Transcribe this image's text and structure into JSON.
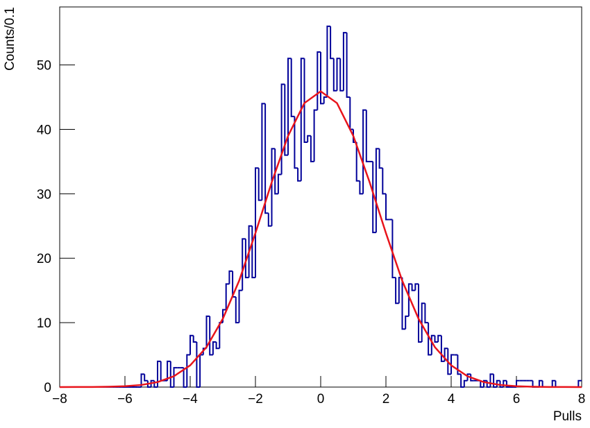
{
  "chart_data": {
    "type": "histogram",
    "x_label": "Pulls",
    "y_label": "Counts/0.1",
    "xlim": [
      -8,
      8
    ],
    "ylim": [
      0,
      59
    ],
    "xticks": [
      {
        "value": -8,
        "label": "−8"
      },
      {
        "value": -6,
        "label": "−6"
      },
      {
        "value": -4,
        "label": "−4"
      },
      {
        "value": -2,
        "label": "−2"
      },
      0,
      2,
      4,
      6,
      8
    ],
    "yticks": [
      0,
      10,
      20,
      30,
      40,
      50
    ],
    "bins": [
      -8,
      -7.9,
      -7.8,
      -7.7,
      -7.6,
      -7.5,
      -7.4,
      -7.3,
      -7.2,
      -7.1,
      -7,
      -6.9,
      -6.8,
      -6.7,
      -6.6,
      -6.5,
      -6.4,
      -6.3,
      -6.2,
      -6.1,
      -6,
      -5.9,
      -5.8,
      -5.7,
      -5.6,
      -5.5,
      -5.4,
      -5.3,
      -5.2,
      -5.1,
      -5,
      -4.9,
      -4.8,
      -4.7,
      -4.6,
      -4.5,
      -4.4,
      -4.3,
      -4.2,
      -4.1,
      -4,
      -3.9,
      -3.8,
      -3.7,
      -3.6,
      -3.5,
      -3.4,
      -3.3,
      -3.2,
      -3.1,
      -3,
      -2.9,
      -2.8,
      -2.7,
      -2.6,
      -2.5,
      -2.4,
      -2.3,
      -2.2,
      -2.1,
      -2,
      -1.9,
      -1.8,
      -1.7,
      -1.6,
      -1.5,
      -1.4,
      -1.3,
      -1.2,
      -1.1,
      -1,
      -0.9,
      -0.8,
      -0.7,
      -0.6,
      -0.5,
      -0.4,
      -0.3,
      -0.2,
      -0.1,
      0,
      0.1,
      0.2,
      0.3,
      0.4,
      0.5,
      0.6,
      0.7,
      0.8,
      0.9,
      1,
      1.1,
      1.2,
      1.3,
      1.4,
      1.5,
      1.6,
      1.7,
      1.8,
      1.9,
      2,
      2.1,
      2.2,
      2.3,
      2.4,
      2.5,
      2.6,
      2.7,
      2.8,
      2.9,
      3,
      3.1,
      3.2,
      3.3,
      3.4,
      3.5,
      3.6,
      3.7,
      3.8,
      3.9,
      4,
      4.1,
      4.2,
      4.3,
      4.4,
      4.5,
      4.6,
      4.7,
      4.8,
      4.9,
      5,
      5.1,
      5.2,
      5.3,
      5.4,
      5.5,
      5.6,
      5.7,
      5.8,
      5.9,
      6,
      6.1,
      6.2,
      6.3,
      6.4,
      6.5,
      6.6,
      6.7,
      6.8,
      6.9,
      7,
      7.1,
      7.2,
      7.3,
      7.4,
      7.5,
      7.6,
      7.7,
      7.8,
      7.9,
      8
    ],
    "color": "#000099",
    "values": [
      0,
      0,
      0,
      0,
      0,
      0,
      0,
      0,
      0,
      0,
      0,
      0,
      0,
      0,
      0,
      0,
      0,
      0,
      0,
      0,
      0,
      0,
      0,
      0,
      0,
      2,
      1,
      0,
      1,
      0,
      4,
      1,
      1,
      4,
      0,
      3,
      3,
      3,
      0,
      5,
      8,
      7,
      0,
      5,
      6,
      11,
      5,
      7,
      6,
      10,
      12,
      16,
      18,
      14,
      10,
      15,
      23,
      17,
      25,
      17,
      34,
      29,
      44,
      27,
      25,
      37,
      30,
      33,
      47,
      36,
      51,
      42,
      34,
      32,
      51,
      38,
      39,
      35,
      43,
      52,
      44,
      45,
      56,
      51,
      46,
      51,
      46,
      55,
      45,
      40,
      38,
      32,
      30,
      43,
      35,
      35,
      24,
      37,
      34,
      30,
      26,
      26,
      17,
      13,
      17,
      9,
      11,
      16,
      15,
      16,
      7,
      13,
      10,
      5,
      8,
      7,
      8,
      4,
      6,
      2,
      5,
      5,
      2,
      0,
      1,
      2,
      1,
      1,
      1,
      0,
      1,
      0,
      2,
      0,
      1,
      0,
      1,
      0,
      0,
      0,
      1,
      1,
      1,
      1,
      1,
      0,
      0,
      1,
      0,
      0,
      0,
      1,
      0,
      0,
      0,
      0,
      0,
      0,
      0,
      1
    ],
    "curve": {
      "color": "#e8141b",
      "x": [
        -8,
        -7.5,
        -7,
        -6.5,
        -6,
        -5.5,
        -5,
        -4.5,
        -4,
        -3.5,
        -3,
        -2.5,
        -2,
        -1.5,
        -1,
        -0.5,
        0,
        0.5,
        1,
        1.5,
        2,
        2.5,
        3,
        3.5,
        4,
        4.5,
        5,
        5.5,
        6,
        6.5,
        7,
        7.5,
        8
      ],
      "y": [
        0,
        0.01,
        0.02,
        0.05,
        0.13,
        0.33,
        0.77,
        1.68,
        3.37,
        6.2,
        10.6,
        16.5,
        23.9,
        31.8,
        38.98,
        44.07,
        45.9,
        44.07,
        38.98,
        31.8,
        23.9,
        16.5,
        10.6,
        6.2,
        3.37,
        1.68,
        0.77,
        0.33,
        0.13,
        0.05,
        0.02,
        0.01,
        0
      ]
    }
  }
}
